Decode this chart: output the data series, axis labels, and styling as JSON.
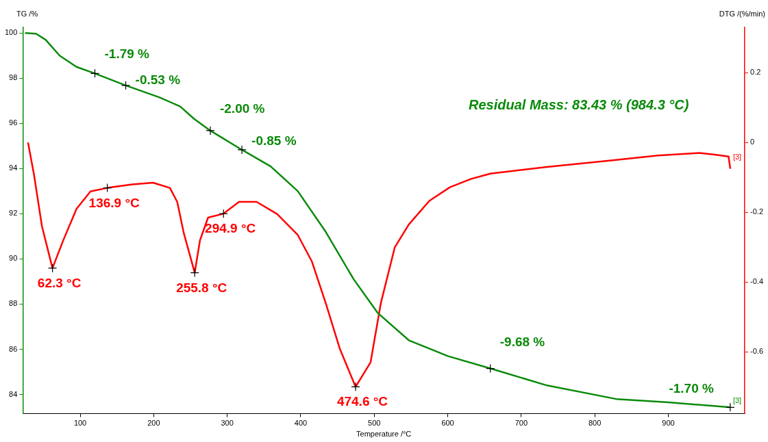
{
  "chart_data": {
    "type": "line",
    "xlabel": "Temperature /°C",
    "ylabel": "TG /%",
    "y2label": "DTG /(%/min)",
    "xlim": [
      22,
      1004
    ],
    "xticks": [
      100,
      200,
      300,
      400,
      500,
      600,
      700,
      800,
      900
    ],
    "ylim": [
      83.15,
      100.25
    ],
    "yticks": [
      84,
      86,
      88,
      90,
      92,
      94,
      96,
      98,
      100
    ],
    "y2lim": [
      -0.777,
      0.33
    ],
    "y2ticks": [
      -0.6,
      -0.4,
      -0.2,
      0,
      0.2
    ],
    "grid": false,
    "legend": false,
    "line_style": "solid",
    "series": [
      {
        "axis": "y",
        "color": "#0a8a0a",
        "marker": "none",
        "x": [
          25,
          40,
          53,
          72,
          95,
          120,
          162,
          208,
          236,
          255,
          277,
          320,
          359,
          396,
          434,
          472,
          505,
          547,
          600,
          658,
          735,
          829,
          900,
          984.3
        ],
        "values": [
          100.0,
          99.97,
          99.7,
          99.0,
          98.5,
          98.21,
          97.68,
          97.15,
          96.75,
          96.2,
          95.68,
          94.83,
          94.1,
          93.0,
          91.2,
          89.1,
          87.6,
          86.4,
          85.7,
          85.15,
          84.4,
          83.8,
          83.65,
          83.43
        ]
      },
      {
        "axis": "y2",
        "color": "#ff0000",
        "marker": "none",
        "x": [
          29,
          37,
          48,
          62.3,
          77,
          95,
          114,
          136.9,
          171,
          199,
          222,
          232,
          241,
          255.8,
          263,
          274,
          294.9,
          316,
          340,
          368,
          396,
          415,
          434,
          453,
          474.6,
          495,
          509,
          528,
          547,
          575,
          603,
          632,
          658,
          735,
          829,
          886,
          942,
          965,
          982,
          984.3
        ],
        "values": [
          0.0,
          -0.09,
          -0.24,
          -0.36,
          -0.28,
          -0.19,
          -0.14,
          -0.13,
          -0.12,
          -0.115,
          -0.13,
          -0.17,
          -0.26,
          -0.373,
          -0.28,
          -0.215,
          -0.204,
          -0.17,
          -0.17,
          -0.205,
          -0.265,
          -0.34,
          -0.46,
          -0.59,
          -0.7,
          -0.63,
          -0.46,
          -0.3,
          -0.235,
          -0.167,
          -0.128,
          -0.104,
          -0.089,
          -0.07,
          -0.05,
          -0.037,
          -0.03,
          -0.035,
          -0.04,
          -0.075
        ]
      },
      {
        "type": "scatter",
        "axis": "y",
        "color": "#000000",
        "marker": "cross",
        "x": [
          120,
          162,
          277,
          320,
          658,
          984.3
        ],
        "values": [
          98.21,
          97.68,
          95.68,
          94.83,
          85.15,
          83.43
        ]
      },
      {
        "type": "scatter",
        "axis": "y2",
        "color": "#000000",
        "marker": "cross",
        "x": [
          62.3,
          136.9,
          255.8,
          294.9,
          474.6
        ],
        "values": [
          -0.36,
          -0.13,
          -0.373,
          -0.204,
          -0.7
        ]
      }
    ],
    "annotations": [
      "Residual Mass: 83.43 % (984.3 °C)",
      "[3]",
      "[3]",
      {
        "text": "-1.79 %",
        "x": 120,
        "y": 98.21
      },
      {
        "text": "-0.53 %",
        "x": 162,
        "y": 97.68
      },
      {
        "text": "-2.00 %",
        "x": 277,
        "y": 95.68
      },
      {
        "text": "-0.85 %",
        "x": 320,
        "y": 94.83
      },
      {
        "text": "-9.68 %",
        "x": 658,
        "y": 85.15
      },
      {
        "text": "-1.70 %",
        "x": 984.3,
        "y": 83.43
      },
      "62.3 °C",
      "136.9 °C",
      "255.8 °C",
      "294.9 °C",
      "474.6 °C"
    ]
  }
}
